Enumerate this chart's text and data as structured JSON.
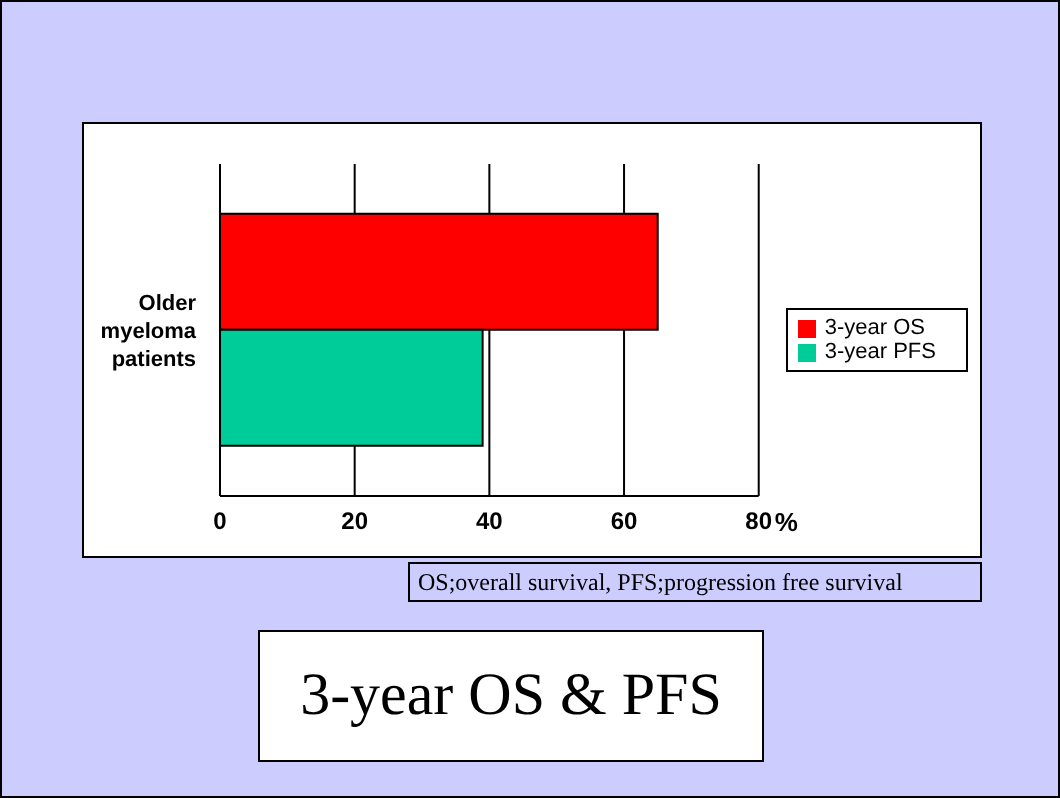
{
  "chart_data": {
    "type": "bar",
    "orientation": "horizontal",
    "title": "3-year OS & PFS",
    "xlabel": "%",
    "categories": [
      "Older myeloma patients"
    ],
    "series": [
      {
        "name": "3-year OS",
        "color": "#ff0000",
        "values": [
          65
        ]
      },
      {
        "name": "3-year PFS",
        "color": "#00cc99",
        "values": [
          39
        ]
      }
    ],
    "xlim": [
      0,
      80
    ],
    "xticks": [
      0,
      20,
      40,
      60,
      80
    ],
    "grid": "x",
    "legend": "right",
    "annotations": [
      "OS;overall survival, PFS;progression free survival"
    ]
  }
}
